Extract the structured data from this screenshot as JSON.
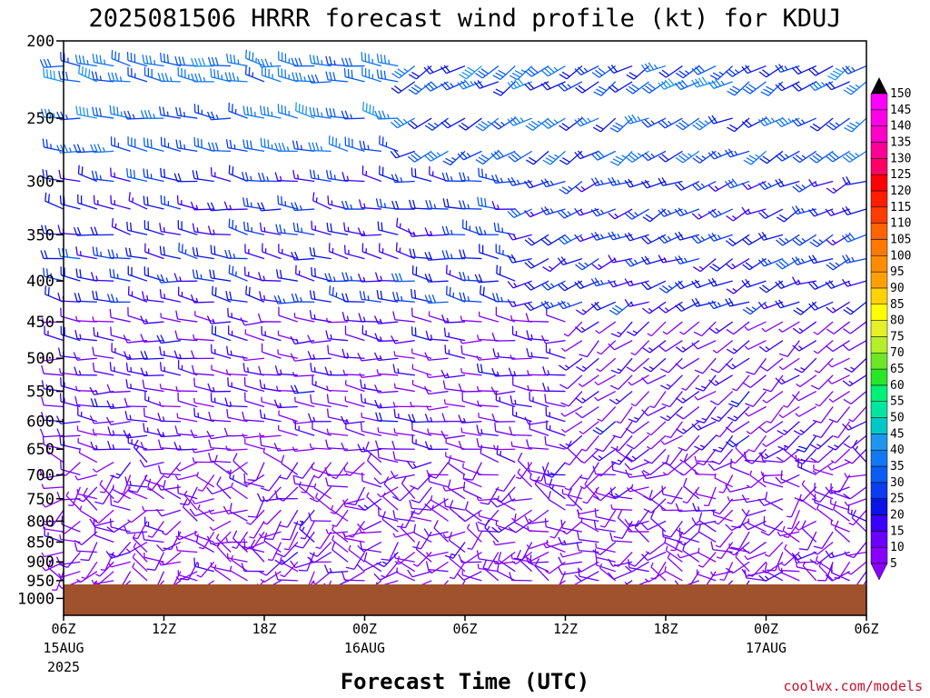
{
  "chart_data": {
    "type": "wind-barb time-height",
    "title": "2025081506 HRRR forecast wind profile (kt) for KDUJ",
    "xlabel": "Forecast Time (UTC)",
    "ylabel": "",
    "credit": "coolwx.com/models",
    "x_ticks": [
      {
        "hour": 0,
        "label": "06Z",
        "date": "15AUG",
        "year": "2025"
      },
      {
        "hour": 6,
        "label": "12Z",
        "date": "",
        "year": ""
      },
      {
        "hour": 12,
        "label": "18Z",
        "date": "",
        "year": ""
      },
      {
        "hour": 18,
        "label": "00Z",
        "date": "16AUG",
        "year": ""
      },
      {
        "hour": 24,
        "label": "06Z",
        "date": "",
        "year": ""
      },
      {
        "hour": 30,
        "label": "12Z",
        "date": "",
        "year": ""
      },
      {
        "hour": 36,
        "label": "18Z",
        "date": "",
        "year": ""
      },
      {
        "hour": 42,
        "label": "00Z",
        "date": "17AUG",
        "year": ""
      },
      {
        "hour": 48,
        "label": "06Z",
        "date": "",
        "year": ""
      }
    ],
    "xlim_hours": [
      0,
      48
    ],
    "y_ticks_hpa": [
      200,
      250,
      300,
      350,
      400,
      450,
      500,
      550,
      600,
      650,
      700,
      750,
      800,
      850,
      900,
      950,
      1000
    ],
    "ylim_hpa": [
      200,
      1050
    ],
    "y_scale": "log-pressure",
    "surface_pressure_hpa": 960,
    "colorbar": {
      "label_levels": [
        5,
        10,
        15,
        20,
        25,
        30,
        35,
        40,
        45,
        50,
        55,
        60,
        65,
        70,
        75,
        80,
        85,
        90,
        95,
        100,
        105,
        110,
        115,
        120,
        125,
        130,
        135,
        140,
        145,
        150
      ],
      "colors": [
        "#8a00ff",
        "#6a00ff",
        "#3a00ff",
        "#0a14e6",
        "#0a3cf0",
        "#0a5cf5",
        "#1478f5",
        "#1e96f0",
        "#00c8c8",
        "#00e6a0",
        "#00f078",
        "#28e628",
        "#6ee628",
        "#b4f028",
        "#e6f028",
        "#ffff00",
        "#ffd200",
        "#ffa000",
        "#ff8c00",
        "#ff7800",
        "#ff6400",
        "#ff3c00",
        "#ff1e00",
        "#ff0000",
        "#ff0064",
        "#ff0096",
        "#ff00c8",
        "#ff00e6",
        "#ff00ff"
      ]
    },
    "levels_hpa": [
      1000,
      975,
      950,
      925,
      900,
      875,
      850,
      825,
      800,
      775,
      750,
      725,
      700,
      675,
      650,
      625,
      600,
      575,
      550,
      525,
      500,
      475,
      450,
      425,
      400,
      375,
      350,
      325,
      300,
      275,
      250,
      225,
      215
    ],
    "wind_regimes": [
      {
        "top_hpa": 200,
        "bottom_hpa": 275,
        "hours": [
          0,
          20
        ],
        "dir_deg": 280,
        "kt": [
          25,
          40
        ],
        "note": "westerly upper jet"
      },
      {
        "top_hpa": 200,
        "bottom_hpa": 275,
        "hours": [
          20,
          48
        ],
        "dir_deg": 240,
        "kt": [
          20,
          40
        ],
        "note": "southwesterly aloft"
      },
      {
        "top_hpa": 275,
        "bottom_hpa": 425,
        "hours": [
          0,
          27
        ],
        "dir_deg": 280,
        "kt": [
          15,
          30
        ]
      },
      {
        "top_hpa": 275,
        "bottom_hpa": 425,
        "hours": [
          27,
          48
        ],
        "dir_deg": 245,
        "kt": [
          15,
          30
        ]
      },
      {
        "top_hpa": 425,
        "bottom_hpa": 650,
        "hours": [
          0,
          30
        ],
        "dir_deg": 275,
        "kt": [
          5,
          20
        ]
      },
      {
        "top_hpa": 425,
        "bottom_hpa": 650,
        "hours": [
          30,
          48
        ],
        "dir_deg": 230,
        "kt": [
          5,
          20
        ]
      },
      {
        "top_hpa": 650,
        "bottom_hpa": 960,
        "hours": [
          0,
          48
        ],
        "dir_deg": 260,
        "kt": [
          5,
          15
        ],
        "note": "light and variable low levels"
      }
    ]
  }
}
